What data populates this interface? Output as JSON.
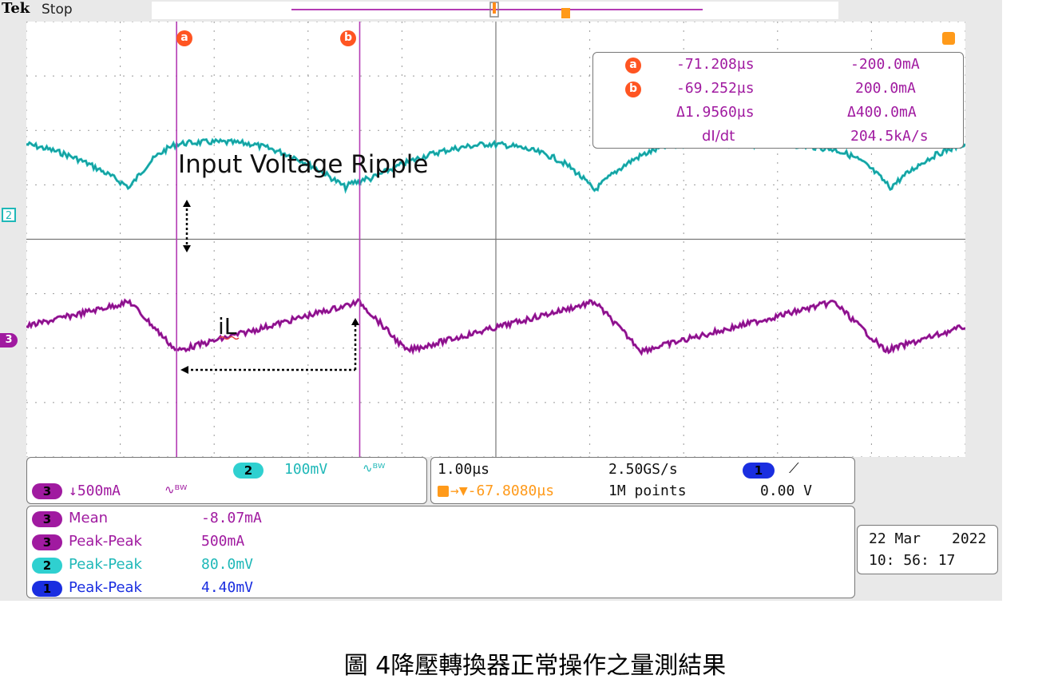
{
  "header": {
    "brand": "Tek",
    "status": "Stop"
  },
  "cursors": {
    "a_label": "a",
    "b_label": "b",
    "readout": {
      "a": {
        "time": "-71.208µs",
        "value": "-200.0mA"
      },
      "b": {
        "time": "-69.252µs",
        "value": "200.0mA"
      },
      "delta": {
        "time": "Δ1.9560µs",
        "value": "Δ400.0mA"
      },
      "rate": {
        "label": "dI/dt",
        "value": "204.5kA/s"
      }
    }
  },
  "annotations": {
    "voltage": "Input Voltage Ripple",
    "current": "iL"
  },
  "channels": {
    "ch2": {
      "badge": "2",
      "scale": "100mV",
      "bw": "∿ᴮᵂ",
      "color": "#1fb8b8"
    },
    "ch3": {
      "badge": "3",
      "scale": "↓500mA",
      "bw": "∿ᴮᵂ",
      "color": "#a01aa0"
    },
    "ch1": {
      "badge": "1",
      "trigger_level": "0.00 V",
      "slope": "⟋",
      "color": "#1a2ee0"
    }
  },
  "timebase": {
    "scale": "1.00µs",
    "sample_rate": "2.50GS/s",
    "trigger_pos": "→▼-67.8080µs",
    "record": "1M points"
  },
  "measurements": [
    {
      "badge": "3",
      "name": "Mean",
      "value": "-8.07mA",
      "color": "#a01aa0"
    },
    {
      "badge": "3",
      "name": "Peak-Peak",
      "value": "500mA",
      "color": "#a01aa0"
    },
    {
      "badge": "2",
      "name": "Peak-Peak",
      "value": "80.0mV",
      "color": "#1fb8b8"
    },
    {
      "badge": "1",
      "name": "Peak-Peak",
      "value": "4.40mV",
      "color": "#1a2ee0"
    }
  ],
  "datetime": {
    "date": "22 Mar",
    "year": "2022",
    "time": "10: 56: 17"
  },
  "caption": "圖 4降壓轉換器正常操作之量測結果",
  "chart_data": {
    "type": "line",
    "x_unit": "div",
    "xlim": [
      0,
      10
    ],
    "ylim": [
      -4,
      4
    ],
    "grid": true,
    "series": [
      {
        "name": "2",
        "color": "#1fb8b8",
        "x": [
          0,
          1.1,
          1.6,
          2.4,
          3.4,
          3.55,
          3.65,
          4.9,
          5.45,
          6.05,
          6.8,
          7.6,
          8.6,
          9.2,
          10.0
        ],
        "y": [
          1.75,
          0.95,
          1.75,
          1.75,
          0.95,
          1.05,
          1.1,
          1.75,
          1.6,
          0.9,
          1.7,
          1.75,
          1.65,
          0.95,
          1.75
        ]
      },
      {
        "name": "3",
        "color": "#a01aa0",
        "x": [
          0,
          1.1,
          1.6,
          3.55,
          4.05,
          6.05,
          6.55,
          8.6,
          9.15,
          10.0
        ],
        "y": [
          -1.6,
          -1.15,
          -2.05,
          -1.15,
          -2.05,
          -1.15,
          -2.05,
          -1.15,
          -2.05,
          -1.6
        ]
      }
    ],
    "cursors_x": [
      1.6,
      3.55
    ]
  }
}
